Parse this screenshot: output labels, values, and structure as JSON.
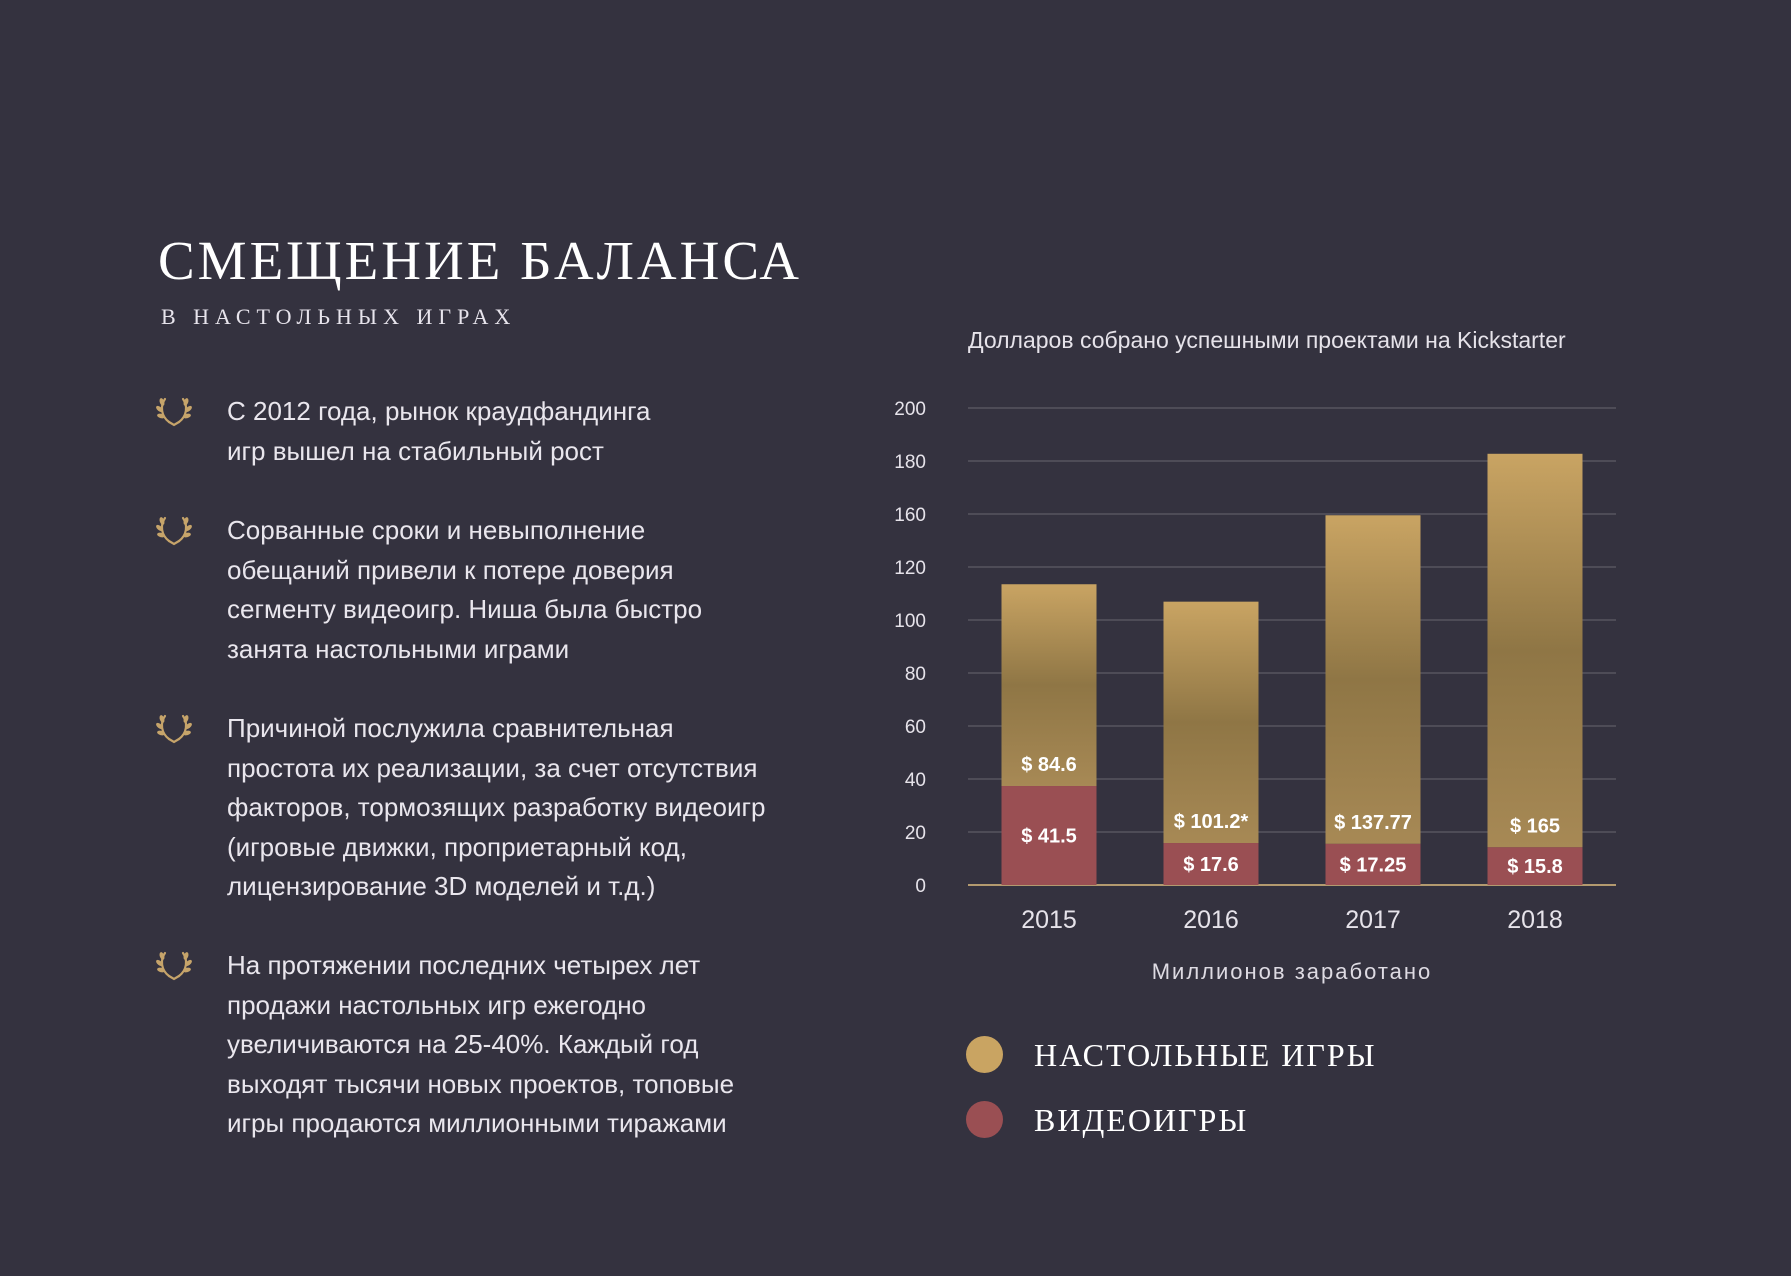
{
  "colors": {
    "background": "#34323f",
    "board_games": "#c9a462",
    "video_games": "#9a4f53",
    "grid": "#67656f",
    "baseline": "#b39a6f"
  },
  "header": {
    "title": "СМЕЩЕНИЕ БАЛАНСА",
    "subtitle": "В НАСТОЛЬНЫХ ИГРАХ"
  },
  "bullets": [
    {
      "icon": "laurel-icon",
      "text": "С 2012 года, рынок краудфандинга\nигр вышел на стабильный рост"
    },
    {
      "icon": "laurel-icon",
      "text": "Сорванные сроки и невыполнение\nобещаний привели к потере доверия\nсегменту видеоигр. Ниша была быстро\nзанята настольными играми"
    },
    {
      "icon": "laurel-icon",
      "text": "Причиной послужила сравнительная\nпростота их реализации, за счет отсутствия\nфакторов, тормозящих разработку видеоигр\n(игровые движки, проприетарный код,\nлицензирование 3D моделей и т.д.)"
    },
    {
      "icon": "laurel-icon",
      "text": "На протяжении последних четырех лет\nпродажи настольных игр ежегодно\nувеличиваются на 25-40%. Каждый год\nвыходят тысячи новых проектов, топовые\nигры продаются миллионными тиражами"
    }
  ],
  "chart_data": {
    "type": "bar",
    "stacked": true,
    "title": "Долларов собрано успешными проектами на Kickstarter",
    "xlabel": "Миллионов заработано",
    "categories": [
      "2015",
      "2016",
      "2017",
      "2018"
    ],
    "y_ticks": [
      "200",
      "180",
      "160",
      "120",
      "100",
      "80",
      "60",
      "40",
      "20",
      "0"
    ],
    "ylim": [
      0,
      200
    ],
    "grid": true,
    "legend_position": "bottom-left",
    "series": [
      {
        "name": "ВИДЕОИГРЫ",
        "color": "#9a4f53",
        "values": [
          41.5,
          17.6,
          17.25,
          15.8
        ],
        "labels": [
          "$ 41.5",
          "$ 17.6",
          "$ 17.25",
          "$ 15.8"
        ]
      },
      {
        "name": "НАСТОЛЬНЫЕ ИГРЫ",
        "color": "#c9a462",
        "values": [
          84.6,
          101.2,
          137.77,
          165
        ],
        "labels": [
          "$ 84.6",
          "$ 101.2*",
          "$ 137.77",
          "$ 165"
        ]
      }
    ]
  },
  "legend": [
    {
      "label": "НАСТОЛЬНЫЕ ИГРЫ",
      "color": "#c9a462"
    },
    {
      "label": "ВИДЕОИГРЫ",
      "color": "#9a4f53"
    }
  ]
}
